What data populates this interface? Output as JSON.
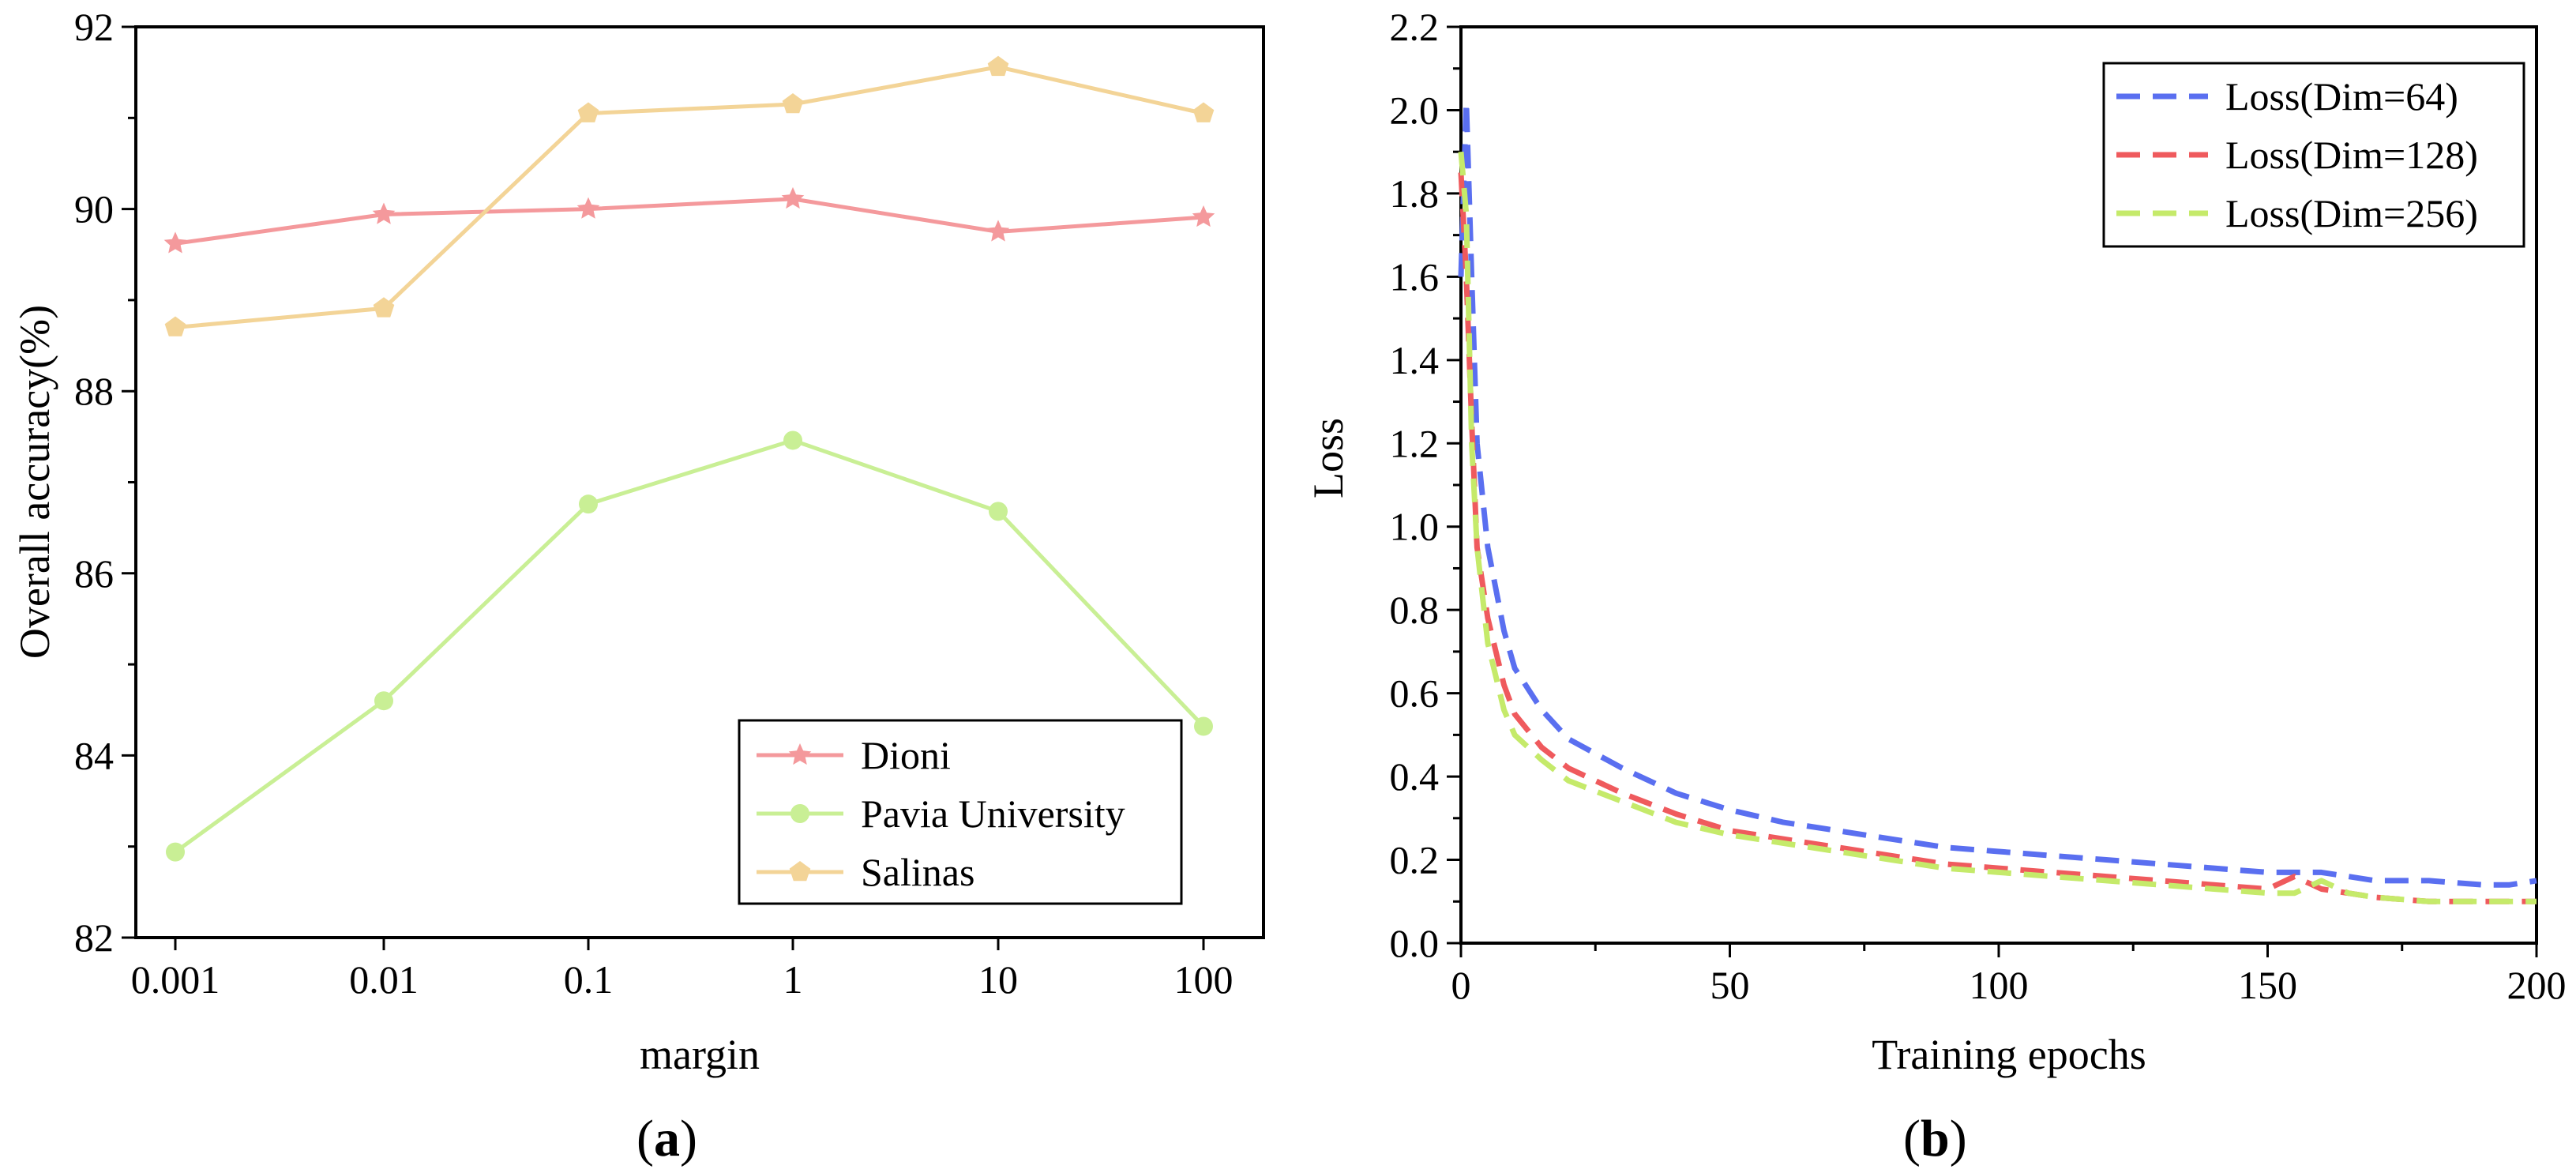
{
  "chart_data": [
    {
      "type": "line",
      "panel_label": "a",
      "xlabel": "margin",
      "ylabel": "Overall accuracy(%)",
      "categories": [
        "0.001",
        "0.01",
        "0.1",
        "1",
        "10",
        "100"
      ],
      "yticks": [
        "82",
        "84",
        "86",
        "88",
        "90",
        "92"
      ],
      "ylim": [
        82,
        92
      ],
      "legend_position": "bottom-right",
      "series": [
        {
          "name": "Dioni",
          "color": "#f4999c",
          "marker": "star",
          "values": [
            89.62,
            89.94,
            90.0,
            90.11,
            89.75,
            89.91
          ]
        },
        {
          "name": "Pavia University",
          "color": "#c9ef95",
          "marker": "circle",
          "values": [
            82.94,
            84.6,
            86.76,
            87.46,
            86.68,
            84.32
          ]
        },
        {
          "name": "Salinas",
          "color": "#f3d497",
          "marker": "pentagon",
          "values": [
            88.7,
            88.91,
            91.05,
            91.15,
            91.56,
            91.05
          ]
        }
      ]
    },
    {
      "type": "line",
      "panel_label": "b",
      "xlabel": "Training epochs",
      "ylabel": "Loss",
      "xticks": [
        "0",
        "50",
        "100",
        "150",
        "200"
      ],
      "yticks": [
        "0.0",
        "0.2",
        "0.4",
        "0.6",
        "0.8",
        "1.0",
        "1.2",
        "1.4",
        "1.6",
        "1.8",
        "2.0",
        "2.2"
      ],
      "xlim": [
        0,
        200
      ],
      "ylim": [
        0,
        2.2
      ],
      "legend_position": "top-right",
      "series": [
        {
          "name": "Loss(Dim=64)",
          "color": "#5a6ff0",
          "x": [
            0,
            1,
            2,
            3,
            5,
            8,
            10,
            15,
            20,
            30,
            40,
            50,
            60,
            70,
            80,
            90,
            100,
            110,
            120,
            130,
            140,
            150,
            160,
            165,
            170,
            180,
            190,
            195,
            200
          ],
          "y": [
            1.6,
            2.02,
            1.6,
            1.2,
            0.95,
            0.75,
            0.66,
            0.56,
            0.49,
            0.42,
            0.36,
            0.32,
            0.29,
            0.27,
            0.25,
            0.23,
            0.22,
            0.21,
            0.2,
            0.19,
            0.18,
            0.17,
            0.17,
            0.16,
            0.15,
            0.15,
            0.14,
            0.14,
            0.15
          ]
        },
        {
          "name": "Loss(Dim=128)",
          "color": "#ef5a5d",
          "x": [
            0,
            1,
            2,
            3,
            5,
            8,
            10,
            15,
            20,
            30,
            40,
            50,
            60,
            70,
            80,
            90,
            100,
            110,
            120,
            130,
            140,
            150,
            155,
            160,
            165,
            170,
            180,
            190,
            200
          ],
          "y": [
            1.85,
            1.6,
            1.25,
            0.95,
            0.78,
            0.62,
            0.55,
            0.47,
            0.42,
            0.36,
            0.31,
            0.27,
            0.25,
            0.23,
            0.21,
            0.19,
            0.18,
            0.17,
            0.16,
            0.15,
            0.14,
            0.13,
            0.16,
            0.13,
            0.12,
            0.11,
            0.1,
            0.1,
            0.1
          ]
        },
        {
          "name": "Loss(Dim=256)",
          "color": "#c5ea6a",
          "x": [
            0,
            1,
            2,
            3,
            5,
            8,
            10,
            15,
            20,
            30,
            40,
            50,
            60,
            70,
            80,
            90,
            100,
            110,
            120,
            130,
            140,
            150,
            155,
            160,
            165,
            170,
            180,
            190,
            200
          ],
          "y": [
            1.9,
            1.75,
            1.2,
            0.95,
            0.72,
            0.56,
            0.5,
            0.44,
            0.39,
            0.34,
            0.29,
            0.26,
            0.24,
            0.22,
            0.2,
            0.18,
            0.17,
            0.16,
            0.15,
            0.14,
            0.13,
            0.12,
            0.12,
            0.15,
            0.12,
            0.11,
            0.1,
            0.1,
            0.1
          ]
        }
      ]
    }
  ]
}
